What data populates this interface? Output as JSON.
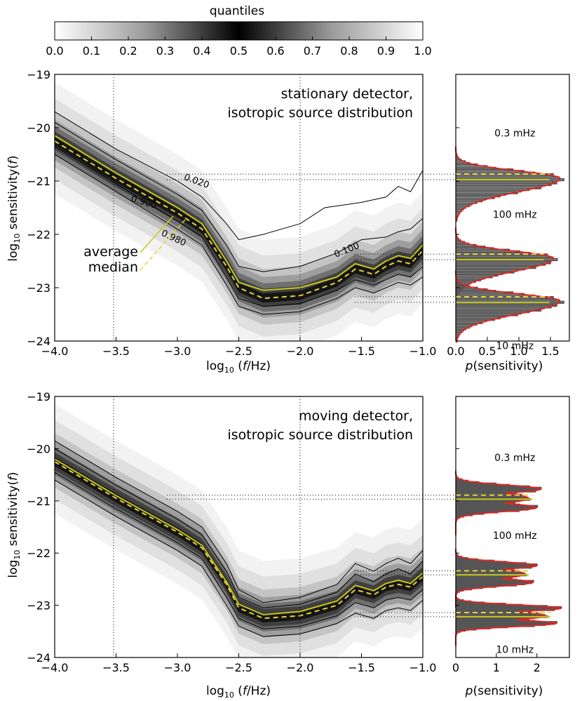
{
  "colorbar": {
    "title": "quantiles",
    "ticks": [
      "0.0",
      "0.1",
      "0.2",
      "0.3",
      "0.4",
      "0.5",
      "0.6",
      "0.7",
      "0.8",
      "0.9",
      "1.0"
    ]
  },
  "colors": {
    "average": "#c8c81e",
    "median": "#e6d23c",
    "fit": "#e8221e",
    "histogram": "#555555",
    "contour": "#000000"
  },
  "chart_data": [
    {
      "type": "area",
      "panel": "top-main",
      "annotation": [
        "stationary detector,",
        "isotropic source distribution"
      ],
      "xlabel": "log10 (f/Hz)",
      "ylabel": "log10 sensitivity(f)",
      "xlim": [
        -4.0,
        -1.0
      ],
      "ylim": [
        -24,
        -19
      ],
      "xticks": [
        "−4.0",
        "−3.5",
        "−3.0",
        "−2.5",
        "−2.0",
        "−1.5",
        "−1.0"
      ],
      "yticks": [
        "−19",
        "−20",
        "−21",
        "−22",
        "−23",
        "−24"
      ],
      "legend": [
        "average",
        "median"
      ],
      "contour_labels": [
        "0.020",
        "0.900",
        "0.980",
        "0.100"
      ],
      "series": [
        {
          "name": "median",
          "x": [
            -4.0,
            -3.5,
            -3.0,
            -2.8,
            -2.6,
            -2.5,
            -2.3,
            -2.0,
            -1.7,
            -1.55,
            -1.4,
            -1.3,
            -1.2,
            -1.1,
            -1.0
          ],
          "y": [
            -20.25,
            -20.95,
            -21.6,
            -21.9,
            -22.6,
            -23.0,
            -23.2,
            -23.15,
            -22.9,
            -22.65,
            -22.75,
            -22.6,
            -22.5,
            -22.55,
            -22.3
          ]
        },
        {
          "name": "average",
          "x": [
            -4.0,
            -3.5,
            -3.0,
            -2.8,
            -2.6,
            -2.5,
            -2.3,
            -2.0,
            -1.7,
            -1.55,
            -1.4,
            -1.3,
            -1.2,
            -1.1,
            -1.0
          ],
          "y": [
            -20.15,
            -20.85,
            -21.5,
            -21.8,
            -22.5,
            -22.9,
            -23.05,
            -23.0,
            -22.8,
            -22.55,
            -22.65,
            -22.5,
            -22.4,
            -22.45,
            -22.2
          ]
        }
      ],
      "contours": [
        {
          "label": "0.020",
          "x": [
            -4.0,
            -3.5,
            -3.0,
            -2.8,
            -2.6,
            -2.5,
            -2.3,
            -2.0,
            -1.8,
            -1.5,
            -1.3,
            -1.2,
            -1.1,
            -1.0
          ],
          "y": [
            -19.7,
            -20.4,
            -21.0,
            -21.3,
            -21.8,
            -22.1,
            -22.0,
            -21.8,
            -21.5,
            -21.4,
            -21.3,
            -21.1,
            -21.2,
            -20.8
          ]
        },
        {
          "label": "0.100",
          "x": [
            -4.0,
            -3.5,
            -3.0,
            -2.8,
            -2.6,
            -2.5,
            -2.3,
            -2.0,
            -1.7,
            -1.5,
            -1.3,
            -1.2,
            -1.1,
            -1.0
          ],
          "y": [
            -19.9,
            -20.6,
            -21.25,
            -21.55,
            -22.2,
            -22.6,
            -22.7,
            -22.6,
            -22.35,
            -22.1,
            -22.05,
            -21.95,
            -21.9,
            -21.7
          ]
        },
        {
          "label": "0.900",
          "x": [
            -4.0,
            -3.5,
            -3.0,
            -2.8,
            -2.6,
            -2.5,
            -2.3,
            -2.0,
            -1.7,
            -1.55,
            -1.4,
            -1.3,
            -1.2,
            -1.1,
            -1.0
          ],
          "y": [
            -20.35,
            -21.05,
            -21.75,
            -22.05,
            -22.8,
            -23.2,
            -23.35,
            -23.3,
            -23.05,
            -22.85,
            -22.95,
            -22.85,
            -22.75,
            -22.8,
            -22.6
          ]
        },
        {
          "label": "0.980",
          "x": [
            -4.0,
            -3.5,
            -3.0,
            -2.8,
            -2.6,
            -2.5,
            -2.3,
            -2.0,
            -1.7,
            -1.55,
            -1.4,
            -1.3,
            -1.2,
            -1.1,
            -1.0
          ],
          "y": [
            -20.5,
            -21.2,
            -21.9,
            -22.2,
            -22.95,
            -23.35,
            -23.5,
            -23.45,
            -23.2,
            -23.0,
            -23.1,
            -23.0,
            -22.9,
            -22.95,
            -22.8
          ]
        }
      ]
    },
    {
      "type": "bar",
      "panel": "top-hist",
      "xlabel": "p(sensitivity)",
      "xlim": [
        0.0,
        1.8
      ],
      "xticks": [
        "0.0",
        "0.5",
        "1.0",
        "1.5"
      ],
      "distributions": [
        {
          "label": "0.3 mHz",
          "center": -20.95,
          "width": 0.25,
          "peak": 1.65
        },
        {
          "label": "100 mHz",
          "center": -22.45,
          "width": 0.24,
          "peak": 1.55
        },
        {
          "label": "10 mHz",
          "center": -23.25,
          "width": 0.24,
          "peak": 1.65
        }
      ]
    },
    {
      "type": "area",
      "panel": "bottom-main",
      "annotation": [
        "moving detector,",
        "isotropic source distribution"
      ],
      "xlabel": "log10 (f/Hz)",
      "ylabel": "log10 sensitivity(f)",
      "xlim": [
        -4.0,
        -1.0
      ],
      "ylim": [
        -24,
        -19
      ],
      "xticks": [
        "−4.0",
        "−3.5",
        "−3.0",
        "−2.5",
        "−2.0",
        "−1.5",
        "−1.0"
      ],
      "yticks": [
        "−19",
        "−20",
        "−21",
        "−22",
        "−23",
        "−24"
      ],
      "series": [
        {
          "name": "median",
          "x": [
            -4.0,
            -3.5,
            -3.0,
            -2.8,
            -2.6,
            -2.5,
            -2.3,
            -2.0,
            -1.7,
            -1.55,
            -1.4,
            -1.3,
            -1.2,
            -1.1,
            -1.0
          ],
          "y": [
            -20.25,
            -20.95,
            -21.6,
            -21.9,
            -22.6,
            -23.05,
            -23.25,
            -23.2,
            -23.0,
            -22.7,
            -22.8,
            -22.65,
            -22.6,
            -22.65,
            -22.45
          ]
        },
        {
          "name": "average",
          "x": [
            -4.0,
            -3.5,
            -3.0,
            -2.8,
            -2.6,
            -2.5,
            -2.3,
            -2.0,
            -1.7,
            -1.55,
            -1.4,
            -1.3,
            -1.2,
            -1.1,
            -1.0
          ],
          "y": [
            -20.2,
            -20.9,
            -21.55,
            -21.85,
            -22.55,
            -22.98,
            -23.18,
            -23.12,
            -22.92,
            -22.62,
            -22.72,
            -22.58,
            -22.52,
            -22.58,
            -22.38
          ]
        }
      ],
      "contours": [
        {
          "label": "",
          "x": [
            -4.0,
            -3.5,
            -3.0,
            -2.8,
            -2.6,
            -2.5,
            -2.3,
            -2.0,
            -1.7,
            -1.55,
            -1.4,
            -1.3,
            -1.2,
            -1.1,
            -1.0
          ],
          "y": [
            -19.85,
            -20.55,
            -21.2,
            -21.5,
            -22.2,
            -22.7,
            -22.95,
            -22.85,
            -22.6,
            -22.2,
            -22.35,
            -22.2,
            -22.1,
            -22.2,
            -21.95
          ]
        },
        {
          "label": "",
          "x": [
            -4.0,
            -3.5,
            -3.0,
            -2.8,
            -2.6,
            -2.5,
            -2.3,
            -2.0,
            -1.7,
            -1.55,
            -1.4,
            -1.3,
            -1.2,
            -1.1,
            -1.0
          ],
          "y": [
            -20.0,
            -20.7,
            -21.35,
            -21.65,
            -22.35,
            -22.85,
            -23.05,
            -22.98,
            -22.75,
            -22.4,
            -22.55,
            -22.4,
            -22.3,
            -22.4,
            -22.15
          ]
        },
        {
          "label": "",
          "x": [
            -4.0,
            -3.5,
            -3.0,
            -2.8,
            -2.6,
            -2.5,
            -2.3,
            -2.0,
            -1.7,
            -1.55,
            -1.4,
            -1.3,
            -1.2,
            -1.1,
            -1.0
          ],
          "y": [
            -20.45,
            -21.15,
            -21.8,
            -22.1,
            -22.85,
            -23.25,
            -23.45,
            -23.4,
            -23.2,
            -22.95,
            -23.05,
            -22.9,
            -22.85,
            -22.9,
            -22.7
          ]
        },
        {
          "label": "",
          "x": [
            -4.0,
            -3.5,
            -3.0,
            -2.8,
            -2.6,
            -2.5,
            -2.3,
            -2.0,
            -1.7,
            -1.55,
            -1.4,
            -1.3,
            -1.2,
            -1.1,
            -1.0
          ],
          "y": [
            -20.6,
            -21.3,
            -21.95,
            -22.25,
            -23.0,
            -23.4,
            -23.6,
            -23.55,
            -23.35,
            -23.15,
            -23.25,
            -23.1,
            -23.05,
            -23.1,
            -22.9
          ]
        }
      ]
    },
    {
      "type": "bar",
      "panel": "bottom-hist",
      "xlabel": "p(sensitivity)",
      "xlim": [
        0,
        2.8
      ],
      "xticks": [
        "0",
        "1",
        "2"
      ],
      "distributions": [
        {
          "label": "0.3 mHz",
          "center": -20.95,
          "width": 0.22,
          "peak": 2.1
        },
        {
          "label": "100 mHz",
          "center": -22.4,
          "width": 0.2,
          "peak": 2.0
        },
        {
          "label": "10 mHz",
          "center": -23.2,
          "width": 0.18,
          "peak": 2.6
        }
      ]
    }
  ]
}
